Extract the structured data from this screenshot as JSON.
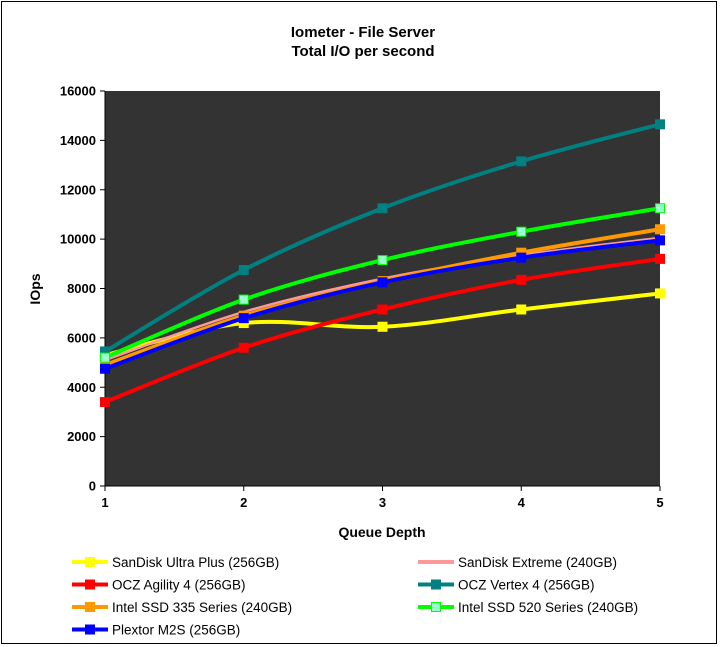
{
  "chart_data": {
    "type": "line",
    "title": "Iometer - File Server",
    "subtitle": "Total I/O per second",
    "xlabel": "Queue Depth",
    "ylabel": "IOps",
    "x": [
      1,
      2,
      3,
      4,
      5
    ],
    "x_tick_labels": [
      "1",
      "2",
      "3",
      "4",
      "5"
    ],
    "ylim": [
      0,
      16000
    ],
    "y_ticks": [
      0,
      2000,
      4000,
      6000,
      8000,
      10000,
      12000,
      14000,
      16000
    ],
    "y_tick_labels": [
      "0",
      "2000",
      "4000",
      "6000",
      "8000",
      "10000",
      "12000",
      "14000",
      "16000"
    ],
    "grid": false,
    "plot_background": "#333333",
    "legend_position": "bottom",
    "series": [
      {
        "name": "SanDisk Ultra Plus (256GB)",
        "color": "#ffff00",
        "marker_color": "#ffff00",
        "marker": true,
        "values": [
          5300,
          6600,
          6450,
          7150,
          7800
        ]
      },
      {
        "name": "SanDisk Extreme (240GB)",
        "color": "#ff9999",
        "marker_color": "#ff9999",
        "marker": false,
        "values": [
          5100,
          7050,
          8400,
          9350,
          10050
        ]
      },
      {
        "name": "OCZ Agility 4 (256GB)",
        "color": "#ff0000",
        "marker_color": "#ff0000",
        "marker": true,
        "values": [
          3400,
          5600,
          7150,
          8350,
          9200
        ]
      },
      {
        "name": "OCZ Vertex 4 (256GB)",
        "color": "#008080",
        "marker_color": "#008080",
        "marker": true,
        "values": [
          5450,
          8750,
          11250,
          13150,
          14650
        ]
      },
      {
        "name": "Intel SSD 335 Series (240GB)",
        "color": "#ff9900",
        "marker_color": "#ff9900",
        "marker": true,
        "values": [
          4900,
          6900,
          8300,
          9450,
          10400
        ]
      },
      {
        "name": "Intel SSD 520 Series (240GB)",
        "color": "#00ff00",
        "marker_color": "#99ffcc",
        "marker": true,
        "values": [
          5200,
          7550,
          9150,
          10300,
          11250
        ]
      },
      {
        "name": "Plextor M2S (256GB)",
        "color": "#0000ff",
        "marker_color": "#0000ff",
        "marker": true,
        "values": [
          4750,
          6800,
          8250,
          9250,
          9950
        ]
      }
    ]
  }
}
